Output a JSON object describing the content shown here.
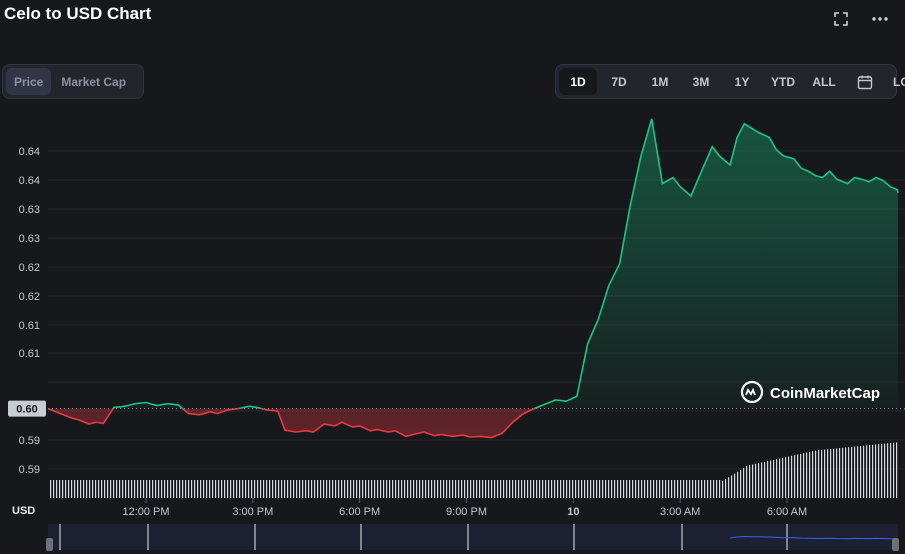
{
  "header": {
    "title": "Celo to USD Chart"
  },
  "icons": {
    "fullscreen": "fullscreen-icon",
    "more": "more-dots-icon",
    "calendar": "calendar-icon",
    "watermark": "coinmarketcap-logo"
  },
  "view_toggle": {
    "price_label": "Price",
    "market_cap_label": "Market Cap",
    "active": "Price"
  },
  "ranges": {
    "items": [
      "1D",
      "7D",
      "1M",
      "3M",
      "1Y",
      "YTD",
      "ALL"
    ],
    "active": "1D",
    "log_label": "LOG"
  },
  "watermark_text": "CoinMarketCap",
  "currency_label": "USD",
  "colors": {
    "up": "#16c784",
    "down": "#ea3943",
    "background": "#17181b",
    "panel": "#22252b"
  },
  "chart_data": {
    "type": "line",
    "y_tick_labels": [
      "0.64",
      "0.64",
      "0.63",
      "0.63",
      "0.62",
      "0.62",
      "0.61",
      "0.61",
      "0.60",
      "0.60",
      "0.59",
      "0.59"
    ],
    "x_tick_labels": [
      "12:00 PM",
      "3:00 PM",
      "6:00 PM",
      "9:00 PM",
      "10",
      "3:00 AM",
      "6:00 AM"
    ],
    "reference_value_label": "0.60",
    "reference_value": 0.6,
    "ylim": [
      0.5855,
      0.6465
    ],
    "grid": true,
    "x_unit": "hours since first x tick (12:00 PM)",
    "x": [
      -2.2,
      -2.1,
      -1.9,
      -1.6,
      -1.4,
      -1.2,
      -0.9,
      -0.7,
      -0.5,
      -0.3,
      0.0,
      0.3,
      0.6,
      0.9,
      1.2,
      1.5,
      1.8,
      2.0,
      2.3,
      2.6,
      2.9,
      3.1,
      3.4,
      3.7,
      3.9,
      4.2,
      4.5,
      4.7,
      5.0,
      5.3,
      5.5,
      5.8,
      6.0,
      6.3,
      6.5,
      6.8,
      7.0,
      7.3,
      7.5,
      7.8,
      8.1,
      8.3,
      8.6,
      8.9,
      9.1,
      9.4,
      9.7,
      10.0,
      10.3,
      10.6,
      10.9,
      11.2,
      11.5,
      11.8,
      12.1,
      12.4,
      12.7,
      13.0,
      13.3,
      13.6,
      13.9,
      14.2,
      14.5,
      14.8,
      15.0,
      15.3,
      15.6,
      15.9,
      16.1,
      16.4,
      16.6,
      16.8,
      17.0,
      17.2,
      17.5,
      17.7,
      17.9,
      18.2,
      18.4,
      18.6,
      18.8,
      19.0,
      19.2,
      19.4,
      19.7,
      19.9,
      20.1,
      20.3,
      20.5,
      20.7,
      20.9,
      21.1,
      21.3
    ],
    "y": [
      0.6,
      0.5985,
      0.5982,
      0.5975,
      0.5978,
      0.5976,
      0.6002,
      0.6003,
      0.6005,
      0.6008,
      0.601,
      0.6005,
      0.6008,
      0.6006,
      0.5992,
      0.599,
      0.5995,
      0.5992,
      0.5998,
      0.6,
      0.6004,
      0.6002,
      0.5998,
      0.5996,
      0.5965,
      0.5962,
      0.5964,
      0.5962,
      0.5975,
      0.5972,
      0.5978,
      0.597,
      0.5972,
      0.5964,
      0.5966,
      0.5962,
      0.5964,
      0.5955,
      0.5958,
      0.5962,
      0.5956,
      0.5958,
      0.5955,
      0.5957,
      0.5954,
      0.5955,
      0.5953,
      0.596,
      0.5978,
      0.5992,
      0.6,
      0.6007,
      0.6014,
      0.6012,
      0.602,
      0.6105,
      0.6145,
      0.62,
      0.6235,
      0.633,
      0.641,
      0.647,
      0.6365,
      0.6375,
      0.636,
      0.6345,
      0.6385,
      0.6425,
      0.641,
      0.6395,
      0.644,
      0.6462,
      0.6455,
      0.6448,
      0.644,
      0.642,
      0.641,
      0.6405,
      0.639,
      0.6385,
      0.6378,
      0.6375,
      0.6385,
      0.6372,
      0.6365,
      0.6375,
      0.6372,
      0.6368,
      0.6375,
      0.637,
      0.636,
      0.6355,
      0.635
    ],
    "volume_note": "volume bars shown beneath the line; low and flat before 3:00 AM, rising steeply after"
  }
}
